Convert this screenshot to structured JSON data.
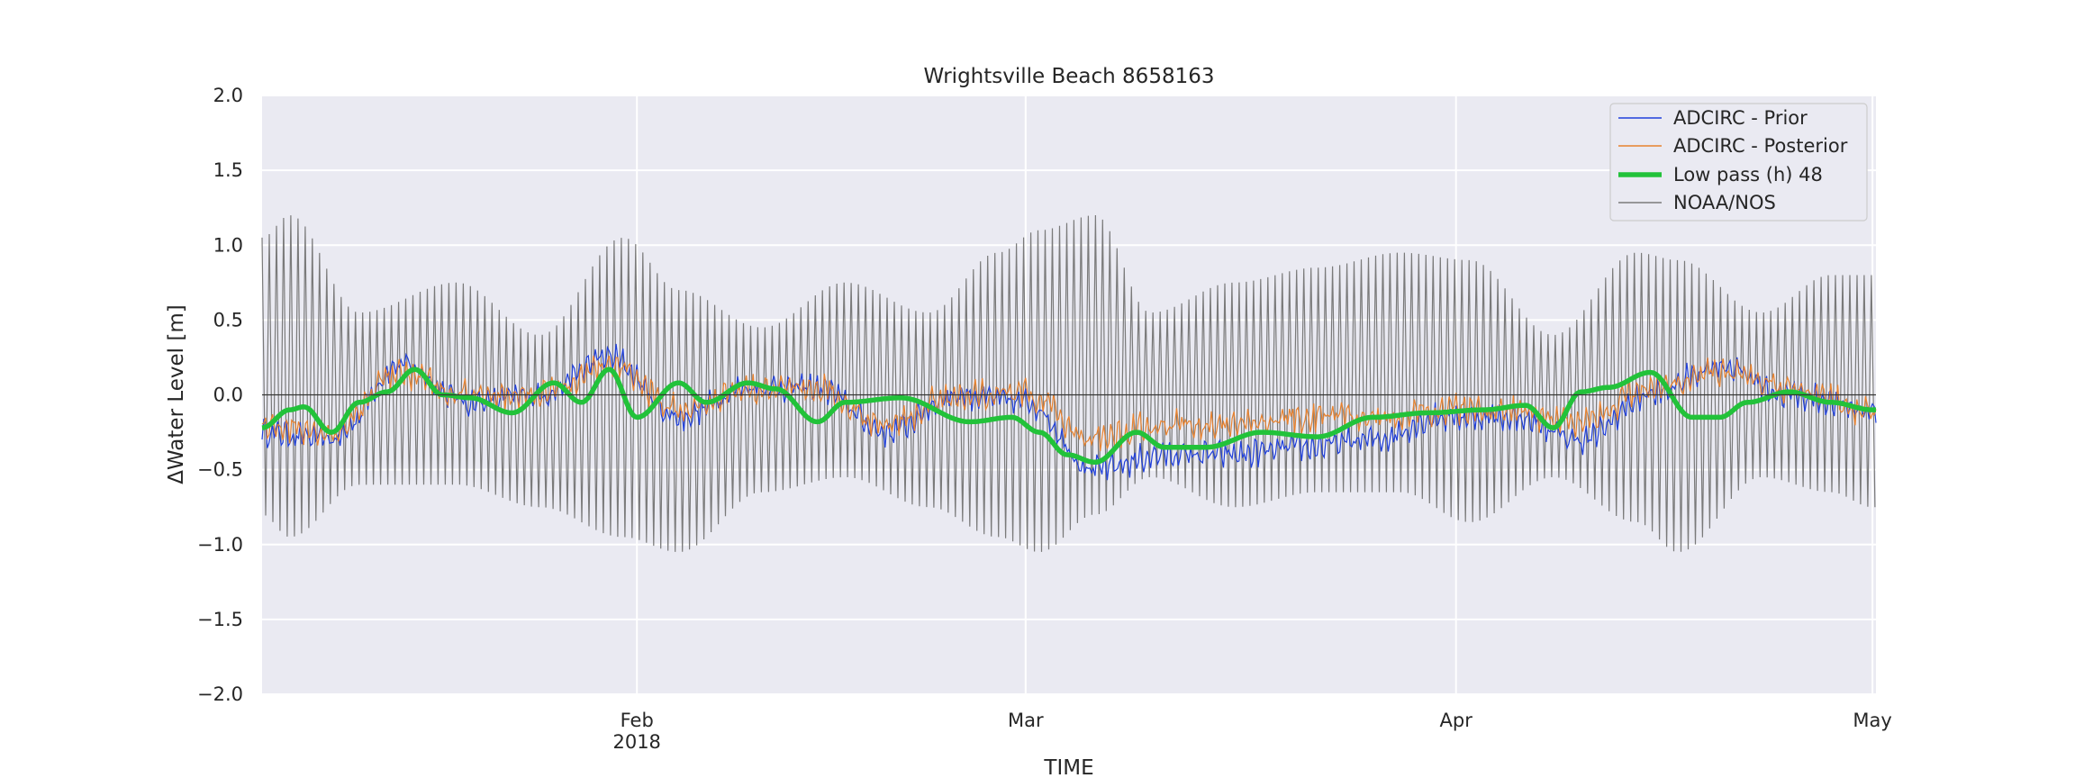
{
  "chart_data": {
    "type": "line",
    "title": "Wrightsville Beach  8658163",
    "xlabel": "TIME",
    "ylabel": "ΔWater Level [m]",
    "ylim": [
      -2.0,
      2.0
    ],
    "xlim": [
      "2018-01-05T00:00",
      "2018-05-01T06:00"
    ],
    "yticks": [
      -2.0,
      -1.5,
      -1.0,
      -0.5,
      0.0,
      0.5,
      1.0,
      1.5,
      2.0
    ],
    "ytick_labels": [
      "−2.0",
      "−1.5",
      "−1.0",
      "−0.5",
      "0.0",
      "0.5",
      "1.0",
      "1.5",
      "2.0"
    ],
    "xticks": [
      {
        "date": "2018-02-01",
        "label": "Feb",
        "sublabel": "2018"
      },
      {
        "date": "2018-03-01",
        "label": "Mar",
        "sublabel": ""
      },
      {
        "date": "2018-04-01",
        "label": "Apr",
        "sublabel": ""
      },
      {
        "date": "2018-05-01",
        "label": "May",
        "sublabel": ""
      }
    ],
    "grid": true,
    "zero_line": true,
    "background_color": "#eaeaf2",
    "legend_position": "top-right",
    "series": [
      {
        "name": "ADCIRC - Prior",
        "color": "#1f3fdb",
        "style": "thin",
        "tidal_amplitude": 0.05,
        "noise": 0.06,
        "offset": 0.02,
        "anomaly_gain": 1.25,
        "x": [
          "2018-01-05",
          "2018-01-10",
          "2018-01-15",
          "2018-01-20",
          "2018-01-25",
          "2018-01-30",
          "2018-02-04",
          "2018-02-09",
          "2018-02-14",
          "2018-02-19",
          "2018-02-24",
          "2018-03-01",
          "2018-03-06",
          "2018-03-11",
          "2018-03-16",
          "2018-03-21",
          "2018-03-26",
          "2018-03-31",
          "2018-04-05",
          "2018-04-10",
          "2018-04-15",
          "2018-04-20",
          "2018-04-25",
          "2018-05-01"
        ],
        "y": [
          -0.25,
          -0.3,
          0.2,
          -0.05,
          0.0,
          0.25,
          -0.15,
          0.05,
          0.05,
          -0.25,
          0.0,
          -0.05,
          -0.5,
          -0.4,
          -0.4,
          -0.35,
          -0.3,
          -0.15,
          -0.15,
          -0.3,
          0.0,
          0.2,
          0.0,
          -0.1
        ]
      },
      {
        "name": "ADCIRC - Posterior",
        "color": "#e8822e",
        "style": "thin",
        "tidal_amplitude": 0.05,
        "noise": 0.07,
        "offset": 0.03,
        "anomaly_gain": 0.95,
        "x": [
          "2018-01-05",
          "2018-01-10",
          "2018-01-15",
          "2018-01-20",
          "2018-01-25",
          "2018-01-30",
          "2018-02-04",
          "2018-02-09",
          "2018-02-14",
          "2018-02-19",
          "2018-02-24",
          "2018-03-01",
          "2018-03-06",
          "2018-03-11",
          "2018-03-16",
          "2018-03-21",
          "2018-03-26",
          "2018-03-31",
          "2018-04-05",
          "2018-04-10",
          "2018-04-15",
          "2018-04-20",
          "2018-04-25",
          "2018-05-01"
        ],
        "y": [
          -0.2,
          -0.25,
          0.15,
          0.0,
          0.0,
          0.2,
          -0.1,
          0.05,
          0.05,
          -0.2,
          0.0,
          0.0,
          -0.3,
          -0.2,
          -0.2,
          -0.15,
          -0.15,
          -0.1,
          -0.1,
          -0.2,
          0.05,
          0.15,
          0.05,
          -0.1
        ]
      },
      {
        "name": "Low pass (h) 48",
        "color": "#22c23a",
        "style": "thick",
        "x": [
          "2018-01-05",
          "2018-01-07",
          "2018-01-08",
          "2018-01-10",
          "2018-01-12",
          "2018-01-14",
          "2018-01-16",
          "2018-01-18",
          "2018-01-20",
          "2018-01-23",
          "2018-01-26",
          "2018-01-28",
          "2018-01-30",
          "2018-02-01",
          "2018-02-04",
          "2018-02-06",
          "2018-02-09",
          "2018-02-11",
          "2018-02-14",
          "2018-02-16",
          "2018-02-20",
          "2018-02-25",
          "2018-02-28",
          "2018-03-02",
          "2018-03-04",
          "2018-03-06",
          "2018-03-09",
          "2018-03-11",
          "2018-03-14",
          "2018-03-18",
          "2018-03-22",
          "2018-03-26",
          "2018-03-30",
          "2018-04-03",
          "2018-04-06",
          "2018-04-08",
          "2018-04-10",
          "2018-04-12",
          "2018-04-15",
          "2018-04-18",
          "2018-04-20",
          "2018-04-22",
          "2018-04-25",
          "2018-04-28",
          "2018-05-01"
        ],
        "y": [
          -0.22,
          -0.1,
          -0.08,
          -0.25,
          -0.05,
          0.02,
          0.17,
          0.0,
          -0.02,
          -0.12,
          0.08,
          -0.05,
          0.17,
          -0.15,
          0.08,
          -0.05,
          0.08,
          0.04,
          -0.18,
          -0.05,
          -0.02,
          -0.18,
          -0.15,
          -0.25,
          -0.4,
          -0.45,
          -0.25,
          -0.35,
          -0.35,
          -0.25,
          -0.28,
          -0.15,
          -0.12,
          -0.1,
          -0.07,
          -0.22,
          0.02,
          0.05,
          0.15,
          -0.15,
          -0.15,
          -0.05,
          0.02,
          -0.05,
          -0.1
        ]
      },
      {
        "name": "NOAA/NOS",
        "color": "#7a7a7a",
        "style": "thin",
        "semidiurnal_period_hours": 12.42,
        "envelope_x": [
          "2018-01-05",
          "2018-01-07",
          "2018-01-12",
          "2018-01-19",
          "2018-01-25",
          "2018-01-31",
          "2018-02-04",
          "2018-02-10",
          "2018-02-16",
          "2018-02-22",
          "2018-02-27",
          "2018-03-02",
          "2018-03-06",
          "2018-03-10",
          "2018-03-16",
          "2018-03-22",
          "2018-03-28",
          "2018-04-02",
          "2018-04-08",
          "2018-04-14",
          "2018-04-17",
          "2018-04-23",
          "2018-04-28",
          "2018-05-01"
        ],
        "envelope_high": [
          1.05,
          1.2,
          0.55,
          0.75,
          0.4,
          1.05,
          0.7,
          0.45,
          0.75,
          0.55,
          0.95,
          1.1,
          1.2,
          0.55,
          0.75,
          0.85,
          0.95,
          0.9,
          0.4,
          0.95,
          0.9,
          0.55,
          0.8,
          0.8
        ],
        "envelope_low": [
          -0.8,
          -0.95,
          -0.6,
          -0.6,
          -0.75,
          -0.95,
          -1.05,
          -0.65,
          -0.55,
          -0.75,
          -0.95,
          -1.05,
          -0.8,
          -0.55,
          -0.75,
          -0.65,
          -0.65,
          -0.85,
          -0.55,
          -0.85,
          -1.05,
          -0.55,
          -0.65,
          -0.75
        ]
      }
    ]
  }
}
